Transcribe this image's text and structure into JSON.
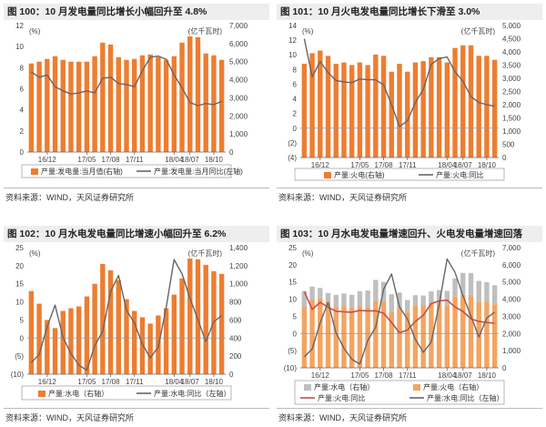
{
  "panels": [
    {
      "id": "p100",
      "title": "图 100：10 月发电量同比增长小幅回升至 4.8%",
      "source": "资料来源：WIND，天风证券研究所",
      "left_unit": "(%)",
      "right_unit": "(亿千瓦时)",
      "legend": [
        "产量:发电量:当月值(右轴)",
        "产量:发电量:当月同比(左轴)"
      ],
      "chart_data": {
        "type": "bar+line",
        "n": 25,
        "x_ticks": [
          {
            "i": 2,
            "label": "16/12"
          },
          {
            "i": 7,
            "label": "17/05"
          },
          {
            "i": 10,
            "label": "17/08"
          },
          {
            "i": 13,
            "label": "17/11"
          },
          {
            "i": 18,
            "label": "18/04"
          },
          {
            "i": 20,
            "label": "18/07"
          },
          {
            "i": 23,
            "label": "18/10"
          }
        ],
        "left_axis": {
          "min": 0,
          "max": 12,
          "ticks": [
            0,
            2,
            4,
            6,
            8,
            10,
            12
          ],
          "labels": [
            "0",
            "2",
            "4",
            "6",
            "8",
            "10",
            "12"
          ]
        },
        "right_axis": {
          "min": 0,
          "max": 7000,
          "ticks": [
            0,
            1000,
            2000,
            3000,
            4000,
            5000,
            6000,
            7000
          ],
          "labels": [
            "0",
            "1,000",
            "2,000",
            "3,000",
            "4,000",
            "5,000",
            "6,000",
            "7,000"
          ]
        },
        "bars": [
          {
            "axis": "right",
            "color": "#ED7D31",
            "values": [
              4900,
              5000,
              5150,
              5300,
              5100,
              5000,
              5000,
              5000,
              5300,
              6050,
              5950,
              5250,
              5100,
              5150,
              5350,
              5400,
              5250,
              5100,
              5300,
              6050,
              6400,
              6350,
              5450,
              5350,
              5100
            ]
          }
        ],
        "lines": [
          {
            "axis": "left",
            "color": "#666666",
            "width": 1.4,
            "values": [
              7.6,
              7.1,
              7.3,
              6.2,
              5.8,
              5.5,
              5.6,
              5.8,
              5.6,
              7.0,
              7.1,
              6.5,
              6.4,
              6.2,
              7.7,
              9.0,
              9.1,
              8.8,
              7.3,
              6.1,
              4.7,
              4.4,
              4.6,
              4.5,
              4.8
            ]
          }
        ]
      }
    },
    {
      "id": "p101",
      "title": "图 101：10 月火电发电量同比增长下滑至 3.0%",
      "source": "资料来源：WIND，天风证券研究所",
      "left_unit": "(%)",
      "right_unit": "(亿千瓦时)",
      "legend": [
        "产量:火电(右轴)",
        "产量:火电:同比"
      ],
      "chart_data": {
        "type": "bar+line",
        "n": 25,
        "x_ticks": [
          {
            "i": 2,
            "label": "16/12"
          },
          {
            "i": 7,
            "label": "17/05"
          },
          {
            "i": 10,
            "label": "17/08"
          },
          {
            "i": 13,
            "label": "17/11"
          },
          {
            "i": 18,
            "label": "18/04"
          },
          {
            "i": 20,
            "label": "18/07"
          },
          {
            "i": 23,
            "label": "18/10"
          }
        ],
        "left_axis": {
          "min": -4,
          "max": 14,
          "ticks": [
            -4,
            -2,
            0,
            2,
            4,
            6,
            8,
            10,
            12,
            14
          ],
          "labels": [
            "(4)",
            "(2)",
            "0",
            "2",
            "4",
            "6",
            "8",
            "10",
            "12",
            "14"
          ]
        },
        "right_axis": {
          "min": 0,
          "max": 5000,
          "ticks": [
            0,
            500,
            1000,
            1500,
            2000,
            2500,
            3000,
            3500,
            4000,
            4500,
            5000
          ],
          "labels": [
            "0",
            "500",
            "1,000",
            "1,500",
            "2,000",
            "2,500",
            "3,000",
            "3,500",
            "4,000",
            "4,500",
            "5,000"
          ]
        },
        "bars": [
          {
            "axis": "right",
            "color": "#ED7D31",
            "values": [
              3550,
              3950,
              4050,
              3850,
              3550,
              3600,
              3500,
              3600,
              3500,
              3900,
              3850,
              3250,
              3550,
              3250,
              3600,
              3650,
              3800,
              3800,
              3600,
              4150,
              4250,
              4250,
              3850,
              3850,
              3700
            ]
          }
        ],
        "lines": [
          {
            "axis": "left",
            "color": "#666666",
            "width": 1.4,
            "values": [
              12.2,
              7.0,
              9.1,
              7.6,
              6.5,
              6.3,
              6.2,
              6.7,
              6.6,
              6.6,
              5.9,
              3.2,
              0.2,
              1.0,
              3.5,
              5.3,
              8.7,
              9.5,
              9.7,
              7.7,
              6.4,
              4.3,
              3.5,
              3.2,
              3.0
            ]
          }
        ]
      }
    },
    {
      "id": "p102",
      "title": "图 102：10 月水电发电量同比增速小幅回升至 6.2%",
      "source": "资料来源：WIND，天风证券研究所",
      "left_unit": "(%)",
      "right_unit": "(亿千瓦时)",
      "legend": [
        "产量:水电（右轴）",
        "产量:水电:同比（左轴）"
      ],
      "chart_data": {
        "type": "bar+line",
        "n": 25,
        "x_ticks": [
          {
            "i": 2,
            "label": "16/12"
          },
          {
            "i": 7,
            "label": "17/05"
          },
          {
            "i": 10,
            "label": "17/08"
          },
          {
            "i": 13,
            "label": "17/11"
          },
          {
            "i": 18,
            "label": "18/04"
          },
          {
            "i": 20,
            "label": "18/07"
          },
          {
            "i": 23,
            "label": "18/10"
          }
        ],
        "left_axis": {
          "min": -10,
          "max": 25,
          "ticks": [
            -10,
            -5,
            0,
            5,
            10,
            15,
            20,
            25
          ],
          "labels": [
            "(10)",
            "(5)",
            "0",
            "5",
            "10",
            "15",
            "20",
            "25"
          ]
        },
        "right_axis": {
          "min": 0,
          "max": 1400,
          "ticks": [
            0,
            200,
            400,
            600,
            800,
            1000,
            1200,
            1400
          ],
          "labels": [
            "0",
            "200",
            "400",
            "600",
            "800",
            "1,000",
            "1,200",
            "1,400"
          ]
        },
        "bars": [
          {
            "axis": "right",
            "color": "#ED7D31",
            "values": [
              920,
              780,
              600,
              510,
              700,
              730,
              750,
              860,
              1000,
              1220,
              1150,
              1040,
              830,
              700,
              630,
              560,
              650,
              730,
              880,
              1060,
              1280,
              1270,
              1210,
              1140,
              1110
            ]
          }
        ],
        "lines": [
          {
            "axis": "left",
            "color": "#666666",
            "width": 1.4,
            "values": [
              -6.8,
              -4.5,
              3.1,
              9.1,
              0.2,
              -4.3,
              -7.5,
              -8.9,
              -2.1,
              1.8,
              12.9,
              17.3,
              7.7,
              4.2,
              -1.7,
              -5.5,
              -2.5,
              8.4,
              21.7,
              17.8,
              11.0,
              5.1,
              -1.0,
              4.5,
              6.2
            ]
          }
        ]
      }
    },
    {
      "id": "p103",
      "title": "图 103：10 月水电发电量增速回升、火电发电量增速回落",
      "source": "资料来源：WIND，天风证券研究所",
      "left_unit": "(%)",
      "right_unit": "(亿千瓦时)",
      "legend": [
        "产量:水电（右轴）",
        "产量:火电（右轴）",
        "产量:火电:同比",
        "产量:水电:同比（左轴）"
      ],
      "chart_data": {
        "type": "stacked-bar+line",
        "n": 25,
        "x_ticks": [
          {
            "i": 2,
            "label": "16/12"
          },
          {
            "i": 7,
            "label": "17/05"
          },
          {
            "i": 10,
            "label": "17/08"
          },
          {
            "i": 13,
            "label": "17/11"
          },
          {
            "i": 18,
            "label": "18/04"
          },
          {
            "i": 20,
            "label": "18/07"
          },
          {
            "i": 23,
            "label": "18/10"
          }
        ],
        "left_axis": {
          "min": -10,
          "max": 25,
          "ticks": [
            -10,
            -5,
            0,
            5,
            10,
            15,
            20,
            25
          ],
          "labels": [
            "(10)",
            "(5)",
            "0",
            "5",
            "10",
            "15",
            "20",
            "25"
          ]
        },
        "right_axis": {
          "min": 0,
          "max": 7000,
          "ticks": [
            0,
            1000,
            2000,
            3000,
            4000,
            5000,
            6000,
            7000
          ],
          "labels": [
            "0",
            "1,000",
            "2,000",
            "3,000",
            "4,000",
            "5,000",
            "6,000",
            "7,000"
          ]
        },
        "bars_stacked": [
          {
            "name": "产量:火电（右轴）",
            "color": "#F4A460",
            "values": [
              3550,
              3950,
              4050,
              3850,
              3550,
              3600,
              3500,
              3600,
              3500,
              3900,
              3850,
              3250,
              3550,
              3250,
              3600,
              3650,
              3800,
              3800,
              3600,
              4150,
              4250,
              4250,
              3850,
              3850,
              3700
            ]
          },
          {
            "name": "产量:水电（右轴）",
            "color": "#BFBFBF",
            "values": [
              920,
              780,
              600,
              510,
              700,
              730,
              750,
              860,
              1000,
              1220,
              1150,
              1040,
              830,
              700,
              630,
              560,
              650,
              730,
              880,
              1060,
              1280,
              1270,
              1210,
              1140,
              1110
            ]
          }
        ],
        "lines": [
          {
            "name": "产量:火电:同比",
            "axis": "left",
            "color": "#C0504D",
            "width": 1.6,
            "values": [
              12.2,
              7.0,
              9.1,
              7.6,
              6.5,
              6.3,
              6.2,
              6.7,
              6.6,
              6.6,
              5.9,
              3.2,
              0.2,
              1.0,
              3.5,
              5.3,
              8.7,
              9.5,
              9.7,
              7.7,
              6.4,
              4.3,
              3.5,
              3.2,
              3.0
            ]
          },
          {
            "name": "产量:水电:同比（左轴）",
            "axis": "left",
            "color": "#666666",
            "width": 1.4,
            "values": [
              -6.8,
              -4.5,
              3.1,
              9.1,
              0.2,
              -4.3,
              -7.5,
              -8.9,
              -2.1,
              1.8,
              12.9,
              17.3,
              7.7,
              4.2,
              -1.7,
              -5.5,
              -2.5,
              8.4,
              21.7,
              17.8,
              11.0,
              5.1,
              -1.0,
              4.5,
              6.2
            ]
          }
        ]
      }
    }
  ]
}
